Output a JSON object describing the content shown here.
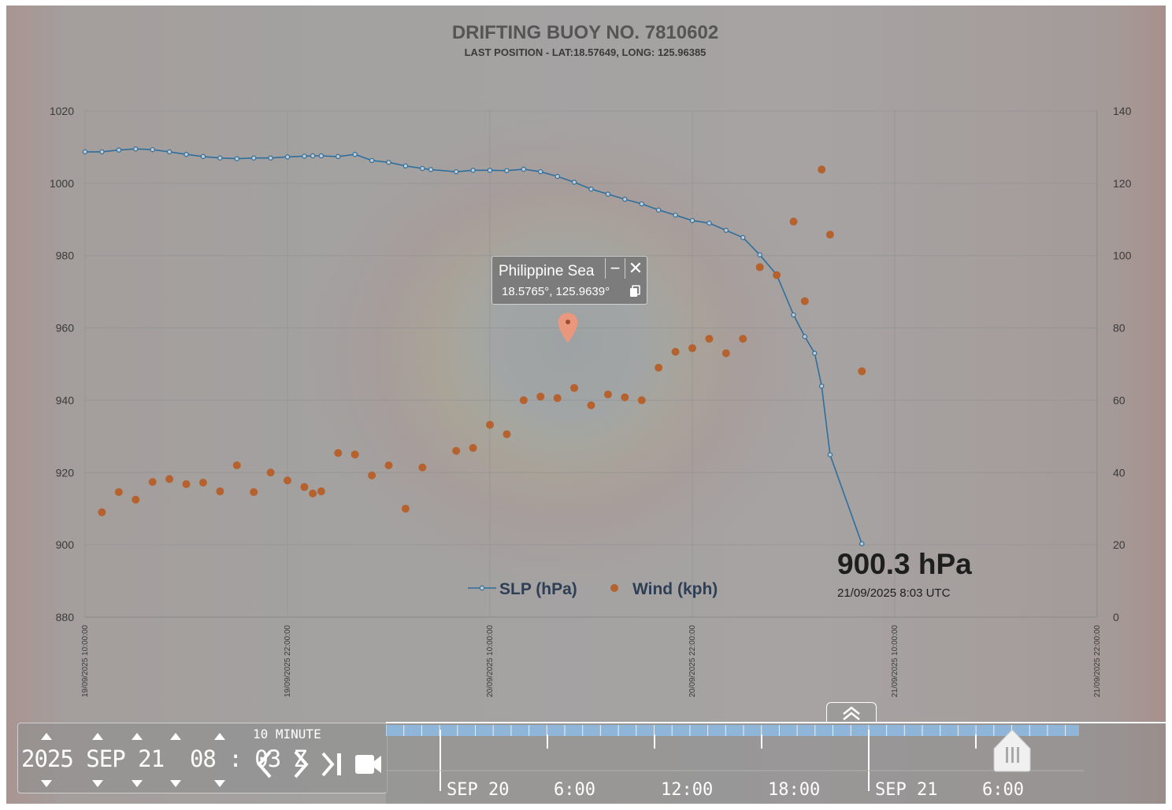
{
  "title": "DRIFTING BUOY NO. 7810602",
  "subtitle": "LAST POSITION -  LAT:18.57649, LONG: 125.96385",
  "annotation": {
    "value": "900.3 hPa",
    "datetime": "21/09/2025 8:03 UTC"
  },
  "legend": {
    "slp": "SLP (hPa)",
    "wind": "Wind (kph)"
  },
  "popup": {
    "title": "Philippine Sea",
    "coords": "18.5765°, 125.9639°",
    "minimize_symbol": "−",
    "close_symbol": "✕"
  },
  "time_control": {
    "date_text": "2025 SEP 21  08 : 03 Z",
    "step_label": "10 MINUTE"
  },
  "timeline": {
    "labels": [
      "SEP 20",
      "6:00",
      "12:00",
      "18:00",
      "SEP 21",
      "6:00"
    ]
  },
  "colors": {
    "slp": "#2e6f9c",
    "wind": "#b5622f",
    "timeline_bar": "#8fb6d8"
  },
  "chart_data": {
    "type": "line",
    "title": "DRIFTING BUOY NO. 7810602",
    "subtitle": "LAST POSITION -  LAT:18.57649, LONG: 125.96385",
    "xlim": [
      "19/09/2025 10:00:00",
      "21/09/2025 22:00:00"
    ],
    "x_ticks": [
      "19/09/2025 10:00:00",
      "19/09/2025 22:00:00",
      "20/09/2025 10:00:00",
      "20/09/2025 22:00:00",
      "21/09/2025 10:00:00",
      "21/09/2025 22:00:00"
    ],
    "ylim_left": [
      880,
      1020
    ],
    "yticks_left": [
      880,
      900,
      920,
      940,
      960,
      980,
      1000,
      1020
    ],
    "ylim_right": [
      0,
      140
    ],
    "yticks_right": [
      0,
      20,
      40,
      60,
      80,
      100,
      120,
      140
    ],
    "grid": true,
    "legend_position": "bottom-center",
    "series": [
      {
        "name": "SLP (hPa)",
        "axis": "left",
        "style": "line-markers",
        "points": [
          [
            "19/09/2025 10:00",
            1008.7
          ],
          [
            "19/09/2025 11:00",
            1008.7
          ],
          [
            "19/09/2025 12:00",
            1009.2
          ],
          [
            "19/09/2025 13:00",
            1009.5
          ],
          [
            "19/09/2025 14:00",
            1009.3
          ],
          [
            "19/09/2025 15:00",
            1008.7
          ],
          [
            "19/09/2025 16:00",
            1008.0
          ],
          [
            "19/09/2025 17:00",
            1007.4
          ],
          [
            "19/09/2025 18:00",
            1007.0
          ],
          [
            "19/09/2025 19:00",
            1006.8
          ],
          [
            "19/09/2025 20:00",
            1007.0
          ],
          [
            "19/09/2025 21:00",
            1007.0
          ],
          [
            "19/09/2025 22:00",
            1007.3
          ],
          [
            "19/09/2025 23:00",
            1007.5
          ],
          [
            "19/09/2025 23:30",
            1007.6
          ],
          [
            "20/09/2025 00:00",
            1007.6
          ],
          [
            "20/09/2025 01:00",
            1007.4
          ],
          [
            "20/09/2025 02:00",
            1008.0
          ],
          [
            "20/09/2025 03:00",
            1006.3
          ],
          [
            "20/09/2025 04:00",
            1005.8
          ],
          [
            "20/09/2025 05:00",
            1004.8
          ],
          [
            "20/09/2025 06:00",
            1004.1
          ],
          [
            "20/09/2025 06:30",
            1003.8
          ],
          [
            "20/09/2025 08:00",
            1003.2
          ],
          [
            "20/09/2025 09:00",
            1003.6
          ],
          [
            "20/09/2025 10:00",
            1003.6
          ],
          [
            "20/09/2025 11:00",
            1003.5
          ],
          [
            "20/09/2025 12:00",
            1003.9
          ],
          [
            "20/09/2025 13:00",
            1003.2
          ],
          [
            "20/09/2025 14:00",
            1001.9
          ],
          [
            "20/09/2025 15:00",
            1000.3
          ],
          [
            "20/09/2025 16:00",
            998.4
          ],
          [
            "20/09/2025 17:00",
            997.0
          ],
          [
            "20/09/2025 18:00",
            995.6
          ],
          [
            "20/09/2025 19:00",
            994.3
          ],
          [
            "20/09/2025 20:00",
            992.6
          ],
          [
            "20/09/2025 21:00",
            991.2
          ],
          [
            "20/09/2025 22:00",
            989.7
          ],
          [
            "20/09/2025 23:00",
            989.0
          ],
          [
            "21/09/2025 00:00",
            987.0
          ],
          [
            "21/09/2025 01:00",
            985.0
          ],
          [
            "21/09/2025 02:00",
            980.2
          ],
          [
            "21/09/2025 03:00",
            974.7
          ],
          [
            "21/09/2025 04:00",
            963.6
          ],
          [
            "21/09/2025 04:40",
            957.6
          ],
          [
            "21/09/2025 05:15",
            953.0
          ],
          [
            "21/09/2025 05:40",
            943.9
          ],
          [
            "21/09/2025 06:10",
            924.9
          ],
          [
            "21/09/2025 08:03",
            900.3
          ]
        ]
      },
      {
        "name": "Wind (kph)",
        "axis": "right",
        "style": "markers",
        "points": [
          [
            "19/09/2025 11:00",
            29.0
          ],
          [
            "19/09/2025 12:00",
            34.6
          ],
          [
            "19/09/2025 13:00",
            32.5
          ],
          [
            "19/09/2025 14:00",
            37.4
          ],
          [
            "19/09/2025 15:00",
            38.2
          ],
          [
            "19/09/2025 16:00",
            36.8
          ],
          [
            "19/09/2025 17:00",
            37.2
          ],
          [
            "19/09/2025 18:00",
            34.8
          ],
          [
            "19/09/2025 19:00",
            42.0
          ],
          [
            "19/09/2025 20:00",
            34.6
          ],
          [
            "19/09/2025 21:00",
            40.0
          ],
          [
            "19/09/2025 22:00",
            37.8
          ],
          [
            "19/09/2025 23:00",
            36.0
          ],
          [
            "19/09/2025 23:30",
            34.2
          ],
          [
            "20/09/2025 00:00",
            34.8
          ],
          [
            "20/09/2025 01:00",
            45.4
          ],
          [
            "20/09/2025 02:00",
            45.0
          ],
          [
            "20/09/2025 03:00",
            39.2
          ],
          [
            "20/09/2025 04:00",
            42.0
          ],
          [
            "20/09/2025 05:00",
            30.0
          ],
          [
            "20/09/2025 06:00",
            41.4
          ],
          [
            "20/09/2025 08:00",
            46.0
          ],
          [
            "20/09/2025 09:00",
            46.8
          ],
          [
            "20/09/2025 10:00",
            53.2
          ],
          [
            "20/09/2025 11:00",
            50.6
          ],
          [
            "20/09/2025 12:00",
            60.0
          ],
          [
            "20/09/2025 13:00",
            61.0
          ],
          [
            "20/09/2025 14:00",
            60.6
          ],
          [
            "20/09/2025 15:00",
            63.4
          ],
          [
            "20/09/2025 16:00",
            58.6
          ],
          [
            "20/09/2025 17:00",
            61.6
          ],
          [
            "20/09/2025 18:00",
            60.8
          ],
          [
            "20/09/2025 19:00",
            60.0
          ],
          [
            "20/09/2025 20:00",
            69.0
          ],
          [
            "20/09/2025 21:00",
            73.4
          ],
          [
            "20/09/2025 22:00",
            74.4
          ],
          [
            "20/09/2025 23:00",
            77.0
          ],
          [
            "21/09/2025 00:00",
            73.0
          ],
          [
            "21/09/2025 01:00",
            77.0
          ],
          [
            "21/09/2025 02:00",
            96.8
          ],
          [
            "21/09/2025 03:00",
            94.6
          ],
          [
            "21/09/2025 04:00",
            109.4
          ],
          [
            "21/09/2025 04:40",
            87.4
          ],
          [
            "21/09/2025 05:40",
            123.8
          ],
          [
            "21/09/2025 06:10",
            105.8
          ],
          [
            "21/09/2025 08:03",
            68.0
          ]
        ]
      }
    ]
  }
}
